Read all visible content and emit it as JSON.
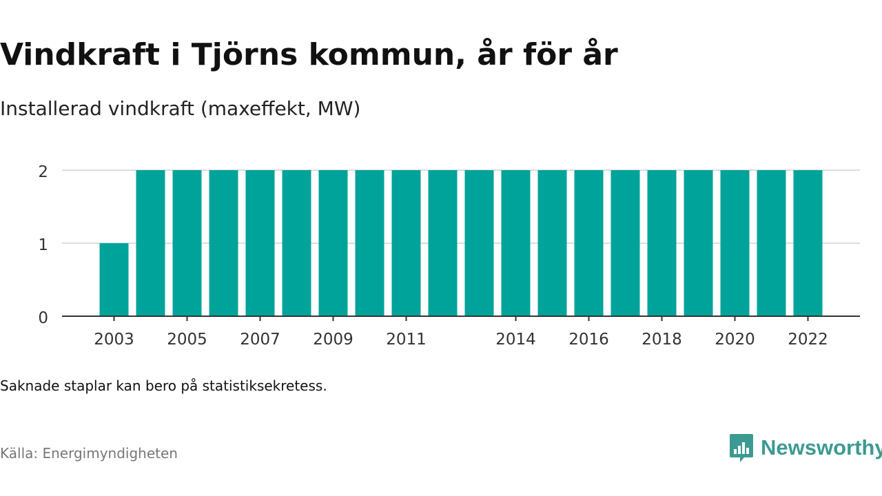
{
  "header": {
    "title": "Vindkraft i Tjörns kommun, år för år",
    "subtitle": "Installerad vindkraft (maxeffekt, MW)"
  },
  "footer": {
    "note": "Saknade staplar kan bero på statistiksekretess.",
    "source": "Källa: Energimyndigheten",
    "brand": "Newsworthy",
    "brand_icon": "bar-chart-speech-bubble-icon"
  },
  "colors": {
    "bar": "#00a39a",
    "gridline": "#dddddd",
    "axis": "#333333",
    "brand": "#3d9a92"
  },
  "chart_data": {
    "type": "bar",
    "categories": [
      "2003",
      "2004",
      "2005",
      "2006",
      "2007",
      "2008",
      "2009",
      "2010",
      "2011",
      "2012",
      "2013",
      "2014",
      "2015",
      "2016",
      "2017",
      "2018",
      "2019",
      "2020",
      "2021",
      "2022"
    ],
    "values": [
      1,
      2,
      2,
      2,
      2,
      2,
      2,
      2,
      2,
      2,
      2,
      2,
      2,
      2,
      2,
      2,
      2,
      2,
      2,
      2
    ],
    "x_tick_labels": [
      "2003",
      "2005",
      "2007",
      "2009",
      "2011",
      "2014",
      "2016",
      "2018",
      "2020",
      "2022"
    ],
    "y_ticks": [
      0,
      1,
      2
    ],
    "ylim": [
      0,
      2
    ],
    "title": "Vindkraft i Tjörns kommun, år för år",
    "subtitle": "Installerad vindkraft (maxeffekt, MW)",
    "xlabel": "",
    "ylabel": "",
    "grid": true,
    "legend": "none"
  }
}
